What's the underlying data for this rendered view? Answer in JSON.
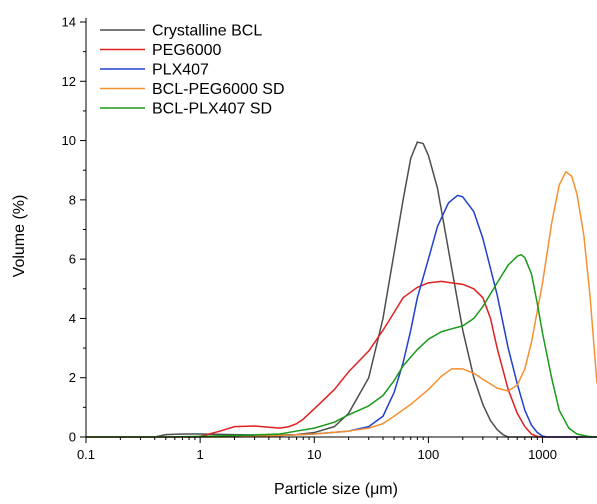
{
  "chart_data": {
    "type": "line",
    "xlabel": "Particle size (μm)",
    "ylabel": "Volume (%)",
    "xscale": "log",
    "xlim": [
      0.1,
      3000
    ],
    "ylim": [
      0,
      14
    ],
    "x_ticks": [
      0.1,
      1,
      10,
      100,
      1000
    ],
    "x_tick_labels": [
      "0.1",
      "1",
      "10",
      "100",
      "1000"
    ],
    "y_ticks": [
      0,
      2,
      4,
      6,
      8,
      10,
      12,
      14
    ],
    "y_tick_labels": [
      "0",
      "2",
      "4",
      "6",
      "8",
      "10",
      "12",
      "14"
    ],
    "grid": false,
    "legend_position": "top-left",
    "series": [
      {
        "name": "Crystalline BCL",
        "color": "#4d4d4d",
        "points": [
          [
            0.1,
            0
          ],
          [
            0.4,
            0
          ],
          [
            0.5,
            0.08
          ],
          [
            0.7,
            0.1
          ],
          [
            1,
            0.1
          ],
          [
            2,
            0.08
          ],
          [
            4,
            0.06
          ],
          [
            7,
            0.08
          ],
          [
            10,
            0.15
          ],
          [
            15,
            0.35
          ],
          [
            20,
            0.8
          ],
          [
            30,
            2.0
          ],
          [
            40,
            4.0
          ],
          [
            50,
            6.2
          ],
          [
            60,
            8.0
          ],
          [
            70,
            9.4
          ],
          [
            80,
            9.95
          ],
          [
            90,
            9.9
          ],
          [
            100,
            9.5
          ],
          [
            120,
            8.4
          ],
          [
            150,
            6.3
          ],
          [
            200,
            3.6
          ],
          [
            250,
            2.0
          ],
          [
            300,
            1.1
          ],
          [
            350,
            0.55
          ],
          [
            400,
            0.25
          ],
          [
            450,
            0.08
          ],
          [
            500,
            0
          ],
          [
            3000,
            0
          ]
        ]
      },
      {
        "name": "PEG6000",
        "color": "#e02020",
        "points": [
          [
            0.1,
            0
          ],
          [
            0.9,
            0
          ],
          [
            1,
            0.02
          ],
          [
            1.5,
            0.2
          ],
          [
            2,
            0.35
          ],
          [
            3,
            0.37
          ],
          [
            4,
            0.33
          ],
          [
            5,
            0.3
          ],
          [
            6,
            0.35
          ],
          [
            7,
            0.45
          ],
          [
            8,
            0.6
          ],
          [
            10,
            0.95
          ],
          [
            15,
            1.6
          ],
          [
            20,
            2.2
          ],
          [
            30,
            2.9
          ],
          [
            40,
            3.6
          ],
          [
            50,
            4.2
          ],
          [
            60,
            4.7
          ],
          [
            80,
            5.05
          ],
          [
            100,
            5.2
          ],
          [
            130,
            5.25
          ],
          [
            160,
            5.2
          ],
          [
            200,
            5.15
          ],
          [
            250,
            5.0
          ],
          [
            300,
            4.7
          ],
          [
            350,
            4.0
          ],
          [
            400,
            3.0
          ],
          [
            500,
            1.6
          ],
          [
            600,
            0.8
          ],
          [
            700,
            0.35
          ],
          [
            800,
            0.1
          ],
          [
            900,
            0.02
          ],
          [
            1000,
            0
          ],
          [
            3000,
            0
          ]
        ]
      },
      {
        "name": "PLX407",
        "color": "#2040d0",
        "points": [
          [
            0.1,
            0
          ],
          [
            1,
            0
          ],
          [
            2,
            0.02
          ],
          [
            5,
            0.05
          ],
          [
            10,
            0.1
          ],
          [
            20,
            0.2
          ],
          [
            30,
            0.35
          ],
          [
            40,
            0.7
          ],
          [
            50,
            1.5
          ],
          [
            60,
            2.5
          ],
          [
            70,
            3.6
          ],
          [
            80,
            4.7
          ],
          [
            100,
            6.0
          ],
          [
            120,
            7.1
          ],
          [
            150,
            7.9
          ],
          [
            180,
            8.15
          ],
          [
            200,
            8.1
          ],
          [
            250,
            7.6
          ],
          [
            300,
            6.7
          ],
          [
            400,
            4.8
          ],
          [
            500,
            3.0
          ],
          [
            600,
            1.8
          ],
          [
            700,
            0.9
          ],
          [
            800,
            0.4
          ],
          [
            900,
            0.15
          ],
          [
            1000,
            0.03
          ],
          [
            1100,
            0
          ],
          [
            3000,
            0
          ]
        ]
      },
      {
        "name": "BCL-PEG6000 SD",
        "color": "#f59030",
        "points": [
          [
            0.1,
            0
          ],
          [
            2,
            0
          ],
          [
            5,
            0.05
          ],
          [
            10,
            0.1
          ],
          [
            20,
            0.2
          ],
          [
            30,
            0.3
          ],
          [
            40,
            0.45
          ],
          [
            50,
            0.7
          ],
          [
            70,
            1.1
          ],
          [
            100,
            1.6
          ],
          [
            130,
            2.05
          ],
          [
            160,
            2.3
          ],
          [
            200,
            2.3
          ],
          [
            250,
            2.15
          ],
          [
            300,
            1.95
          ],
          [
            400,
            1.65
          ],
          [
            500,
            1.55
          ],
          [
            600,
            1.75
          ],
          [
            700,
            2.3
          ],
          [
            800,
            3.2
          ],
          [
            1000,
            5.2
          ],
          [
            1200,
            7.2
          ],
          [
            1400,
            8.5
          ],
          [
            1600,
            8.95
          ],
          [
            1800,
            8.8
          ],
          [
            2000,
            8.2
          ],
          [
            2300,
            6.8
          ],
          [
            2600,
            4.8
          ],
          [
            3000,
            1.8
          ]
        ]
      },
      {
        "name": "BCL-PLX407 SD",
        "color": "#1a9a1a",
        "points": [
          [
            0.1,
            0
          ],
          [
            0.5,
            0
          ],
          [
            1,
            0.02
          ],
          [
            2,
            0.05
          ],
          [
            5,
            0.1
          ],
          [
            7,
            0.2
          ],
          [
            10,
            0.3
          ],
          [
            15,
            0.5
          ],
          [
            20,
            0.75
          ],
          [
            30,
            1.05
          ],
          [
            40,
            1.4
          ],
          [
            50,
            1.9
          ],
          [
            60,
            2.4
          ],
          [
            80,
            2.95
          ],
          [
            100,
            3.3
          ],
          [
            130,
            3.55
          ],
          [
            160,
            3.65
          ],
          [
            200,
            3.75
          ],
          [
            250,
            4.0
          ],
          [
            300,
            4.4
          ],
          [
            400,
            5.2
          ],
          [
            500,
            5.8
          ],
          [
            600,
            6.1
          ],
          [
            650,
            6.15
          ],
          [
            700,
            6.05
          ],
          [
            800,
            5.5
          ],
          [
            900,
            4.5
          ],
          [
            1000,
            3.5
          ],
          [
            1200,
            2.0
          ],
          [
            1400,
            0.9
          ],
          [
            1700,
            0.3
          ],
          [
            2000,
            0.1
          ],
          [
            2500,
            0.02
          ],
          [
            3000,
            0
          ]
        ]
      }
    ]
  }
}
